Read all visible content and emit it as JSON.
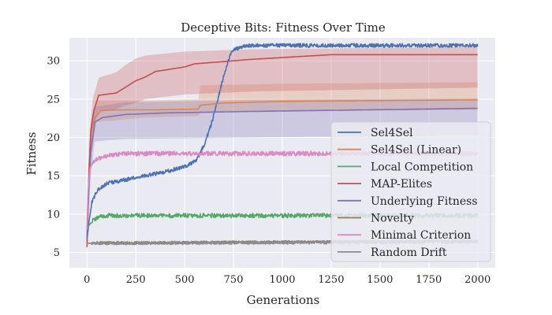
{
  "chart_data": {
    "type": "line",
    "title": "Deceptive Bits: Fitness Over Time",
    "xlabel": "Generations",
    "ylabel": "Fitness",
    "xlim": [
      -90,
      2090
    ],
    "ylim": [
      3,
      33
    ],
    "xticks": [
      0,
      250,
      500,
      750,
      1000,
      1250,
      1500,
      1750,
      2000
    ],
    "yticks": [
      5,
      10,
      15,
      20,
      25,
      30
    ],
    "grid": true,
    "legend_position": "lower-right",
    "background": "#eaeaf2",
    "series": [
      {
        "name": "Sel4Sel",
        "color": "#4c72b0",
        "points": [
          [
            0,
            6.5
          ],
          [
            10,
            9
          ],
          [
            25,
            11.5
          ],
          [
            50,
            13
          ],
          [
            100,
            14
          ],
          [
            200,
            14.5
          ],
          [
            300,
            15
          ],
          [
            400,
            15.5
          ],
          [
            500,
            16.2
          ],
          [
            560,
            17
          ],
          [
            600,
            19
          ],
          [
            640,
            22
          ],
          [
            660,
            24
          ],
          [
            700,
            28
          ],
          [
            740,
            31.3
          ],
          [
            800,
            31.9
          ],
          [
            850,
            32
          ],
          [
            2000,
            32
          ]
        ],
        "band": null,
        "noise": 0.25
      },
      {
        "name": "Sel4Sel (Linear)",
        "color": "#dd8452",
        "points": [
          [
            0,
            7
          ],
          [
            10,
            16
          ],
          [
            20,
            20.5
          ],
          [
            40,
            22.5
          ],
          [
            70,
            23.5
          ],
          [
            150,
            23.6
          ],
          [
            350,
            23.6
          ],
          [
            570,
            23.7
          ],
          [
            580,
            24.2
          ],
          [
            700,
            24.5
          ],
          [
            1000,
            24.7
          ],
          [
            1500,
            24.8
          ],
          [
            2000,
            24.9
          ]
        ],
        "band": [
          [
            0,
            6,
            8
          ],
          [
            20,
            18,
            22
          ],
          [
            50,
            22,
            24.8
          ],
          [
            300,
            22.6,
            24.8
          ],
          [
            570,
            22.8,
            25
          ],
          [
            580,
            23.2,
            26.8
          ],
          [
            1000,
            23.4,
            27
          ],
          [
            2000,
            23.6,
            27.2
          ]
        ],
        "noise": 0
      },
      {
        "name": "Local Competition",
        "color": "#55a868",
        "points": [
          [
            0,
            8
          ],
          [
            10,
            8.5
          ],
          [
            30,
            9.2
          ],
          [
            60,
            9.6
          ],
          [
            100,
            9.8
          ],
          [
            2000,
            9.8
          ]
        ],
        "band": null,
        "noise": 0.28
      },
      {
        "name": "MAP-Elites",
        "color": "#c44e52",
        "points": [
          [
            0,
            5.7
          ],
          [
            5,
            10
          ],
          [
            10,
            15
          ],
          [
            20,
            21
          ],
          [
            35,
            23.5
          ],
          [
            60,
            25.5
          ],
          [
            150,
            25.8
          ],
          [
            200,
            26.6
          ],
          [
            250,
            27.4
          ],
          [
            300,
            27.9
          ],
          [
            350,
            28.6
          ],
          [
            500,
            29.2
          ],
          [
            550,
            29.6
          ],
          [
            850,
            30.2
          ],
          [
            1250,
            30.8
          ],
          [
            2000,
            30.8
          ]
        ],
        "band": [
          [
            0,
            5,
            6.5
          ],
          [
            10,
            12,
            19
          ],
          [
            30,
            21,
            25
          ],
          [
            60,
            23.5,
            27.8
          ],
          [
            150,
            23.7,
            28.5
          ],
          [
            200,
            24.2,
            29.5
          ],
          [
            250,
            24.5,
            30.3
          ],
          [
            300,
            25,
            30.7
          ],
          [
            500,
            25.6,
            31.2
          ],
          [
            850,
            26,
            31.5
          ],
          [
            2000,
            26.5,
            31.8
          ]
        ],
        "noise": 0
      },
      {
        "name": "Underlying Fitness",
        "color": "#8172b2",
        "points": [
          [
            0,
            6.8
          ],
          [
            10,
            14
          ],
          [
            20,
            18
          ],
          [
            40,
            22
          ],
          [
            80,
            22.6
          ],
          [
            200,
            23
          ],
          [
            400,
            23.2
          ],
          [
            850,
            23.4
          ],
          [
            2000,
            23.8
          ]
        ],
        "band": [
          [
            0,
            6,
            7.5
          ],
          [
            20,
            15,
            21
          ],
          [
            40,
            19.5,
            24
          ],
          [
            200,
            19.8,
            24.6
          ],
          [
            850,
            20,
            24.9
          ],
          [
            2000,
            20.3,
            25.1
          ]
        ],
        "noise": 0
      },
      {
        "name": "Novelty",
        "color": "#937860",
        "points": [
          [
            0,
            6.2
          ],
          [
            2000,
            6.5
          ]
        ],
        "band": null,
        "noise": 0.18
      },
      {
        "name": "Minimal Criterion",
        "color": "#da8bc3",
        "points": [
          [
            0,
            8
          ],
          [
            5,
            13
          ],
          [
            15,
            16
          ],
          [
            40,
            17
          ],
          [
            100,
            17.6
          ],
          [
            200,
            17.9
          ],
          [
            2000,
            17.9
          ]
        ],
        "band": null,
        "noise": 0.3
      },
      {
        "name": "Random Drift",
        "color": "#8c8c8c",
        "points": [
          [
            0,
            6.2
          ],
          [
            2000,
            6.4
          ]
        ],
        "band": null,
        "noise": 0.22
      }
    ]
  }
}
